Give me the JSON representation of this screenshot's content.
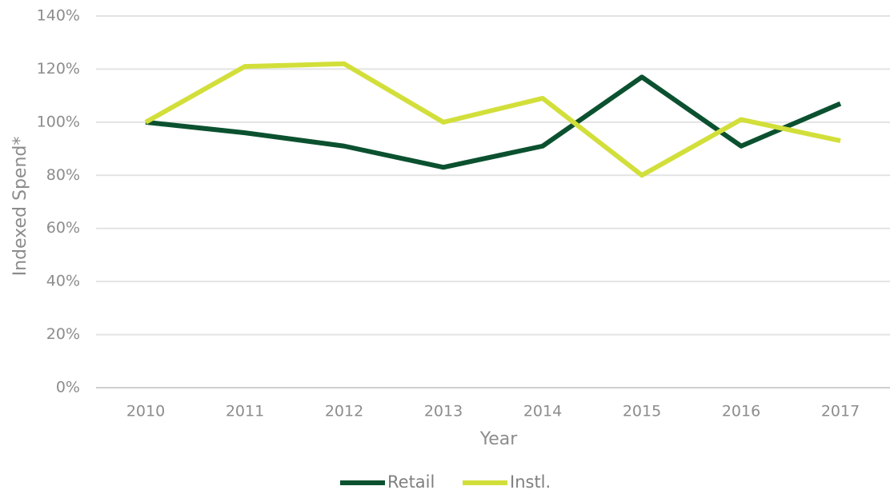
{
  "chart_data": {
    "type": "line",
    "x_label": "Year",
    "y_label": "Indexed Spend*",
    "categories": [
      "2010",
      "2011",
      "2012",
      "2013",
      "2014",
      "2015",
      "2016",
      "2017"
    ],
    "series": [
      {
        "name": "Retail",
        "color": "#0b5130",
        "values": [
          100,
          96,
          91,
          83,
          91,
          117,
          91,
          107
        ]
      },
      {
        "name": "Instl.",
        "color": "#d2df3a",
        "values": [
          100,
          121,
          122,
          100,
          109,
          80,
          101,
          93
        ]
      }
    ],
    "ylim": [
      0,
      140
    ],
    "yticks": [
      {
        "value": 0,
        "label": "0%"
      },
      {
        "value": 20,
        "label": "20%"
      },
      {
        "value": 40,
        "label": "40%"
      },
      {
        "value": 60,
        "label": "60%"
      },
      {
        "value": 80,
        "label": "80%"
      },
      {
        "value": 100,
        "label": "100%"
      },
      {
        "value": 120,
        "label": "120%"
      },
      {
        "value": 140,
        "label": "140%"
      }
    ],
    "grid": true,
    "legend": "bottom"
  }
}
